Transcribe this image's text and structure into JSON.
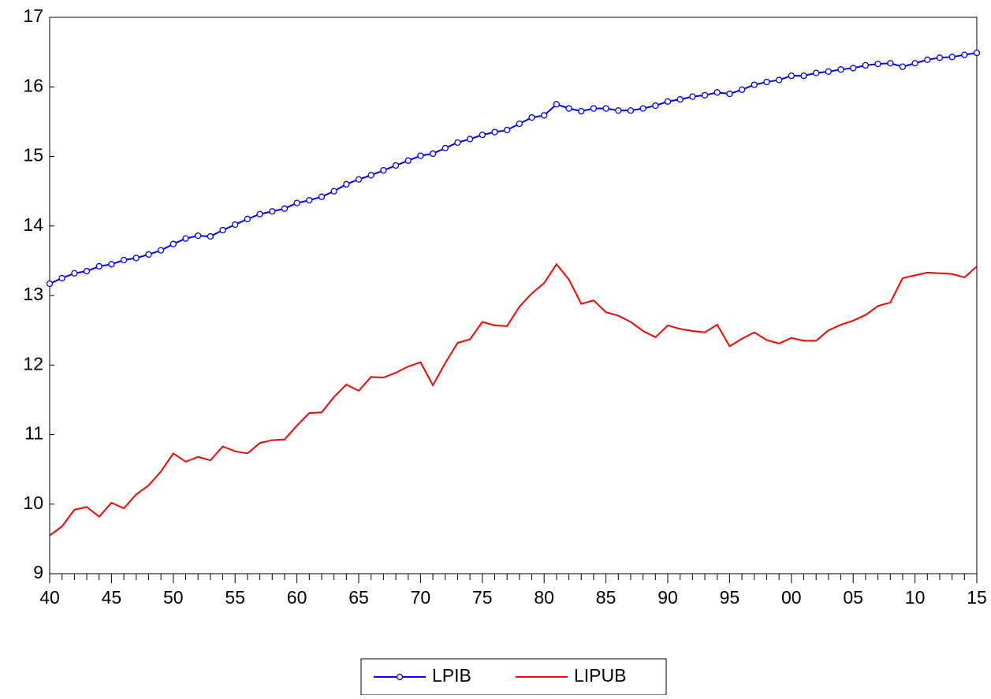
{
  "chart_data": {
    "type": "line",
    "categories": [
      "40",
      null,
      null,
      null,
      null,
      "45",
      null,
      null,
      null,
      null,
      "50",
      null,
      null,
      null,
      null,
      "55",
      null,
      null,
      null,
      null,
      "60",
      null,
      null,
      null,
      null,
      "65",
      null,
      null,
      null,
      null,
      "70",
      null,
      null,
      null,
      null,
      "75",
      null,
      null,
      null,
      null,
      "80",
      null,
      null,
      null,
      null,
      "85",
      null,
      null,
      null,
      null,
      "90",
      null,
      null,
      null,
      null,
      "95",
      null,
      null,
      null,
      null,
      "00",
      null,
      null,
      null,
      null,
      "05",
      null,
      null,
      null,
      null,
      "10",
      null,
      null,
      null,
      null,
      "15"
    ],
    "series": [
      {
        "name": "LPIB",
        "color": "#0000ff",
        "marker": "circle",
        "values": [
          13.17,
          13.25,
          13.32,
          13.35,
          13.42,
          13.45,
          13.51,
          13.54,
          13.59,
          13.65,
          13.74,
          13.82,
          13.86,
          13.85,
          13.94,
          14.02,
          14.1,
          14.17,
          14.21,
          14.25,
          14.33,
          14.37,
          14.42,
          14.5,
          14.6,
          14.67,
          14.73,
          14.8,
          14.87,
          14.94,
          15.01,
          15.04,
          15.12,
          15.2,
          15.25,
          15.31,
          15.35,
          15.38,
          15.47,
          15.56,
          15.59,
          15.75,
          15.69,
          15.65,
          15.69,
          15.69,
          15.66,
          15.66,
          15.69,
          15.73,
          15.79,
          15.82,
          15.86,
          15.88,
          15.92,
          15.9,
          15.96,
          16.03,
          16.07,
          16.1,
          16.16,
          16.16,
          16.2,
          16.22,
          16.25,
          16.27,
          16.31,
          16.33,
          16.34,
          16.29,
          16.34,
          16.39,
          16.42,
          16.43,
          16.46,
          16.49
        ]
      },
      {
        "name": "LIPUB",
        "color": "#ff0000",
        "marker": "none",
        "values": [
          9.55,
          9.68,
          9.92,
          9.96,
          9.82,
          10.02,
          9.94,
          10.14,
          10.27,
          10.47,
          10.73,
          10.61,
          10.68,
          10.63,
          10.83,
          10.76,
          10.73,
          10.88,
          10.92,
          10.93,
          11.13,
          11.31,
          11.32,
          11.54,
          11.72,
          11.63,
          11.83,
          11.82,
          11.89,
          11.98,
          12.04,
          11.71,
          12.03,
          12.32,
          12.37,
          12.62,
          12.57,
          12.56,
          12.84,
          13.03,
          13.18,
          13.45,
          13.23,
          12.88,
          12.93,
          12.76,
          12.71,
          12.62,
          12.49,
          12.4,
          12.57,
          12.52,
          12.49,
          12.47,
          12.58,
          12.27,
          12.38,
          12.47,
          12.36,
          12.31,
          12.39,
          12.35,
          12.35,
          12.5,
          12.58,
          12.64,
          12.72,
          12.85,
          12.9,
          13.25,
          13.29,
          13.33,
          13.32,
          13.31,
          13.26,
          13.42
        ]
      }
    ],
    "ylim": [
      9,
      17
    ],
    "yticks": [
      9,
      10,
      11,
      12,
      13,
      14,
      15,
      16,
      17
    ],
    "grid": false,
    "legend": "bottom"
  }
}
